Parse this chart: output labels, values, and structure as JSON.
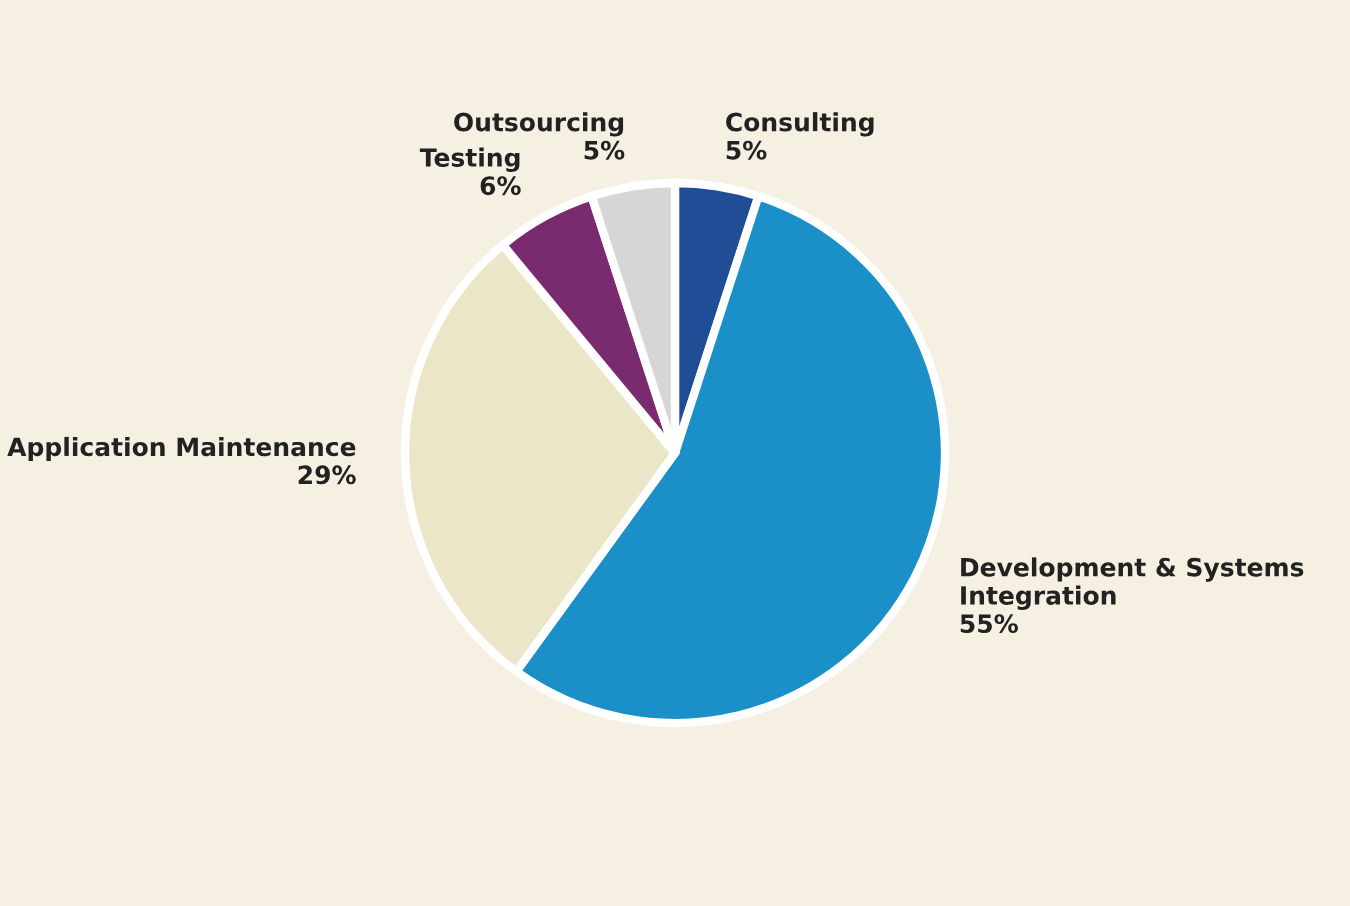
{
  "chart_data": {
    "type": "pie",
    "categories": [
      "Consulting",
      "Development & Systems Integration",
      "Application Maintenance",
      "Testing",
      "Outsourcing"
    ],
    "values": [
      5,
      55,
      29,
      6,
      5
    ],
    "value_labels": [
      "5%",
      "55%",
      "29%",
      "6%",
      "5%"
    ],
    "colors": [
      "#1f4e96",
      "#1a8fc8",
      "#ece6c8",
      "#7a2a6e",
      "#d6d6d6"
    ]
  }
}
